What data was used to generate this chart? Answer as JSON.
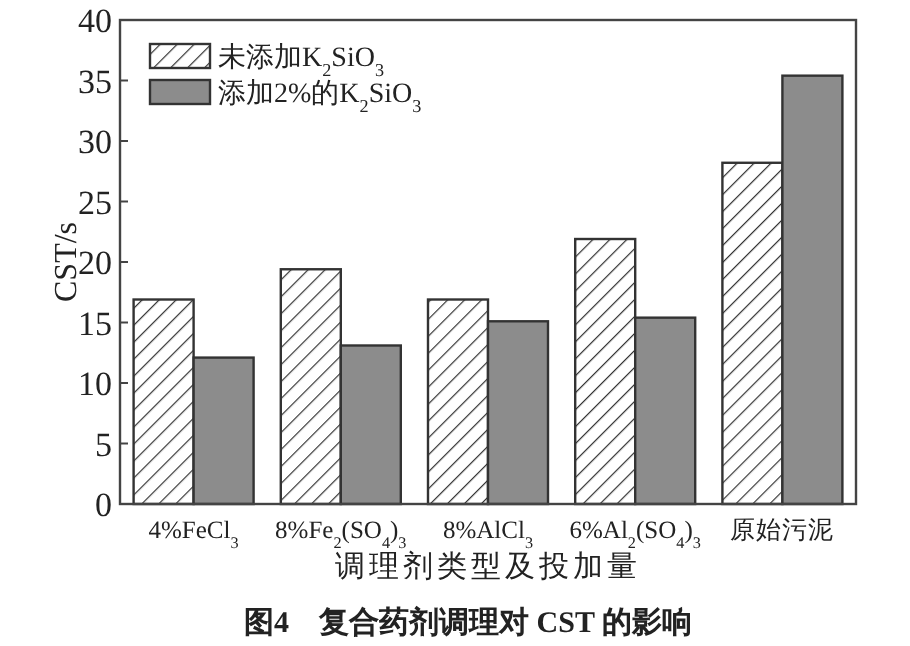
{
  "chart_data": {
    "type": "bar",
    "title": "图4　复合药剂调理对 CST 的影响",
    "xlabel": "调理剂类型及投加量",
    "ylabel": "CST/s",
    "categories": [
      "4%FeCl$_{3}$",
      "8%Fe$_{2}$(SO$_{4}$)$_{3}$",
      "8%AlCl$_{3}$",
      "6%Al$_{2}$(SO$_{4}$)$_{3}$",
      "原始污泥"
    ],
    "series": [
      {
        "name": "未添加K$_{2}$SiO$_{3}$",
        "color": "#333333",
        "values": [
          16.9,
          19.4,
          16.9,
          21.9,
          28.2
        ]
      },
      {
        "name": "添加2%的K$_{2}$SiO$_{3}$",
        "color": "#8c8c8c",
        "values": [
          12.1,
          13.1,
          15.1,
          15.4,
          35.4
        ]
      }
    ],
    "ylim": [
      0,
      40
    ],
    "yticks": [
      0,
      5,
      10,
      15,
      20,
      25,
      30,
      35,
      40
    ],
    "legend": "top left",
    "grid": false
  }
}
